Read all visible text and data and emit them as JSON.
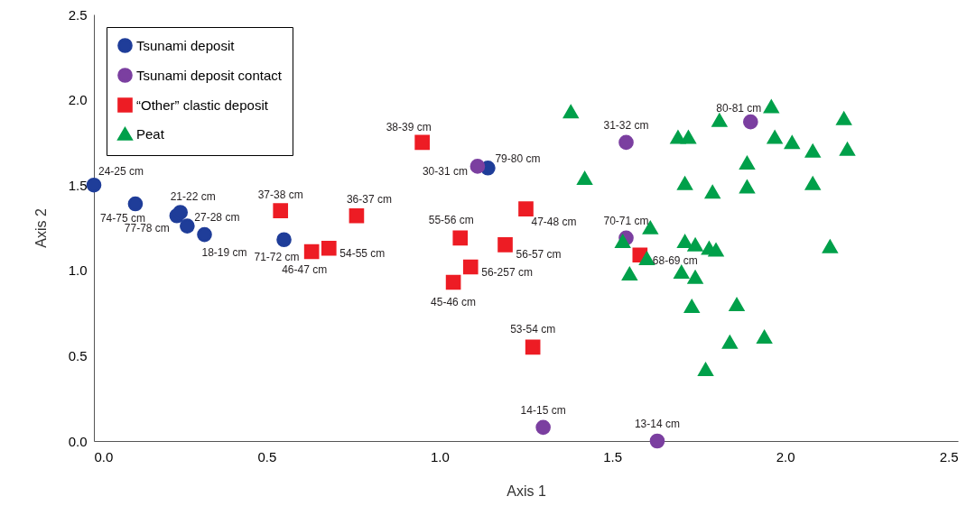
{
  "chart_data": {
    "type": "scatter",
    "xlabel": "Axis 1",
    "ylabel": "Axis 2",
    "xlim": [
      0,
      2.5
    ],
    "ylim": [
      0,
      2.5
    ],
    "xticks": [
      {
        "value": 0,
        "label": "0.0"
      },
      0.5,
      {
        "value": 1,
        "label": "1.0"
      },
      1.5,
      {
        "value": 2,
        "label": "2.0"
      },
      2.5
    ],
    "yticks": [
      {
        "value": 0,
        "label": "0.0"
      },
      0.5,
      {
        "value": 1,
        "label": "1.0"
      },
      1.5,
      {
        "value": 2,
        "label": "2.0"
      },
      2.5
    ],
    "grid": false,
    "legend": "top left",
    "series": [
      {
        "name": "Tsunami deposit",
        "color": "#1f3d99",
        "marker": "circle",
        "x": [
          0.0,
          0.12,
          0.25,
          0.24,
          0.27,
          0.32,
          0.55,
          1.14
        ],
        "values": [
          1.5,
          1.39,
          1.34,
          1.32,
          1.26,
          1.21,
          1.18,
          1.6
        ]
      },
      {
        "name": "Tsunami deposit contact",
        "color": "#7b3fa0",
        "marker": "circle",
        "x": [
          1.11,
          1.54,
          1.54,
          1.9,
          1.3,
          1.63
        ],
        "values": [
          1.61,
          1.75,
          1.19,
          1.87,
          0.08,
          0.0
        ]
      },
      {
        "name": "“Other” clastic deposit",
        "color": "#ed1c24",
        "marker": "square",
        "x": [
          0.95,
          0.54,
          0.76,
          0.63,
          0.68,
          1.06,
          1.25,
          1.19,
          1.09,
          1.04,
          1.27,
          1.58
        ],
        "values": [
          1.75,
          1.35,
          1.32,
          1.11,
          1.13,
          1.19,
          1.36,
          1.15,
          1.02,
          0.93,
          0.55,
          1.09
        ]
      },
      {
        "name": "Peat",
        "color": "#00a04a",
        "marker": "triangle",
        "x": [
          1.96,
          2.17,
          1.81,
          1.69,
          1.72,
          1.97,
          2.02,
          2.08,
          2.18,
          1.89,
          1.71,
          1.79,
          1.89,
          2.08,
          1.61,
          1.53,
          1.6,
          1.71,
          1.74,
          1.78,
          1.8,
          2.13,
          1.55,
          1.7,
          1.74,
          1.73,
          1.86,
          1.84,
          1.94,
          1.77,
          1.38,
          1.42
        ],
        "values": [
          1.96,
          1.89,
          1.88,
          1.78,
          1.78,
          1.78,
          1.75,
          1.7,
          1.71,
          1.63,
          1.51,
          1.46,
          1.49,
          1.51,
          1.25,
          1.17,
          1.07,
          1.17,
          1.15,
          1.13,
          1.12,
          1.14,
          0.98,
          0.99,
          0.96,
          0.79,
          0.8,
          0.58,
          0.61,
          0.42,
          1.93,
          1.54
        ]
      }
    ],
    "annotations": [
      {
        "text": "24-25 cm",
        "x": 0.0,
        "y": 1.5
      },
      {
        "text": "74-75 cm",
        "x": 0.12,
        "y": 1.39
      },
      {
        "text": "21-22 cm",
        "x": 0.25,
        "y": 1.34
      },
      {
        "text": "77-78 cm",
        "x": 0.24,
        "y": 1.32
      },
      {
        "text": "27-28 cm",
        "x": 0.27,
        "y": 1.26
      },
      {
        "text": "18-19 cm",
        "x": 0.32,
        "y": 1.21
      },
      {
        "text": "71-72 cm",
        "x": 0.55,
        "y": 1.18
      },
      {
        "text": "79-80 cm",
        "x": 1.14,
        "y": 1.6
      },
      {
        "text": "30-31 cm",
        "x": 1.11,
        "y": 1.61
      },
      {
        "text": "31-32 cm",
        "x": 1.54,
        "y": 1.75
      },
      {
        "text": "70-71 cm",
        "x": 1.54,
        "y": 1.19
      },
      {
        "text": "80-81 cm",
        "x": 1.9,
        "y": 1.87
      },
      {
        "text": "14-15 cm",
        "x": 1.3,
        "y": 0.08
      },
      {
        "text": "13-14 cm",
        "x": 1.63,
        "y": 0.0
      },
      {
        "text": "38-39 cm",
        "x": 0.95,
        "y": 1.75
      },
      {
        "text": "37-38 cm",
        "x": 0.54,
        "y": 1.35
      },
      {
        "text": "36-37 cm",
        "x": 0.76,
        "y": 1.32
      },
      {
        "text": "46-47 cm",
        "x": 0.63,
        "y": 1.11
      },
      {
        "text": "54-55 cm",
        "x": 0.68,
        "y": 1.13
      },
      {
        "text": "55-56 cm",
        "x": 1.06,
        "y": 1.19
      },
      {
        "text": "47-48 cm",
        "x": 1.25,
        "y": 1.36
      },
      {
        "text": "56-57 cm",
        "x": 1.19,
        "y": 1.15
      },
      {
        "text": "56-257 cm",
        "x": 1.09,
        "y": 1.02
      },
      {
        "text": "45-46 cm",
        "x": 1.04,
        "y": 0.93
      },
      {
        "text": "53-54 cm",
        "x": 1.27,
        "y": 0.55
      },
      {
        "text": "68-69 cm",
        "x": 1.58,
        "y": 1.09
      }
    ]
  }
}
